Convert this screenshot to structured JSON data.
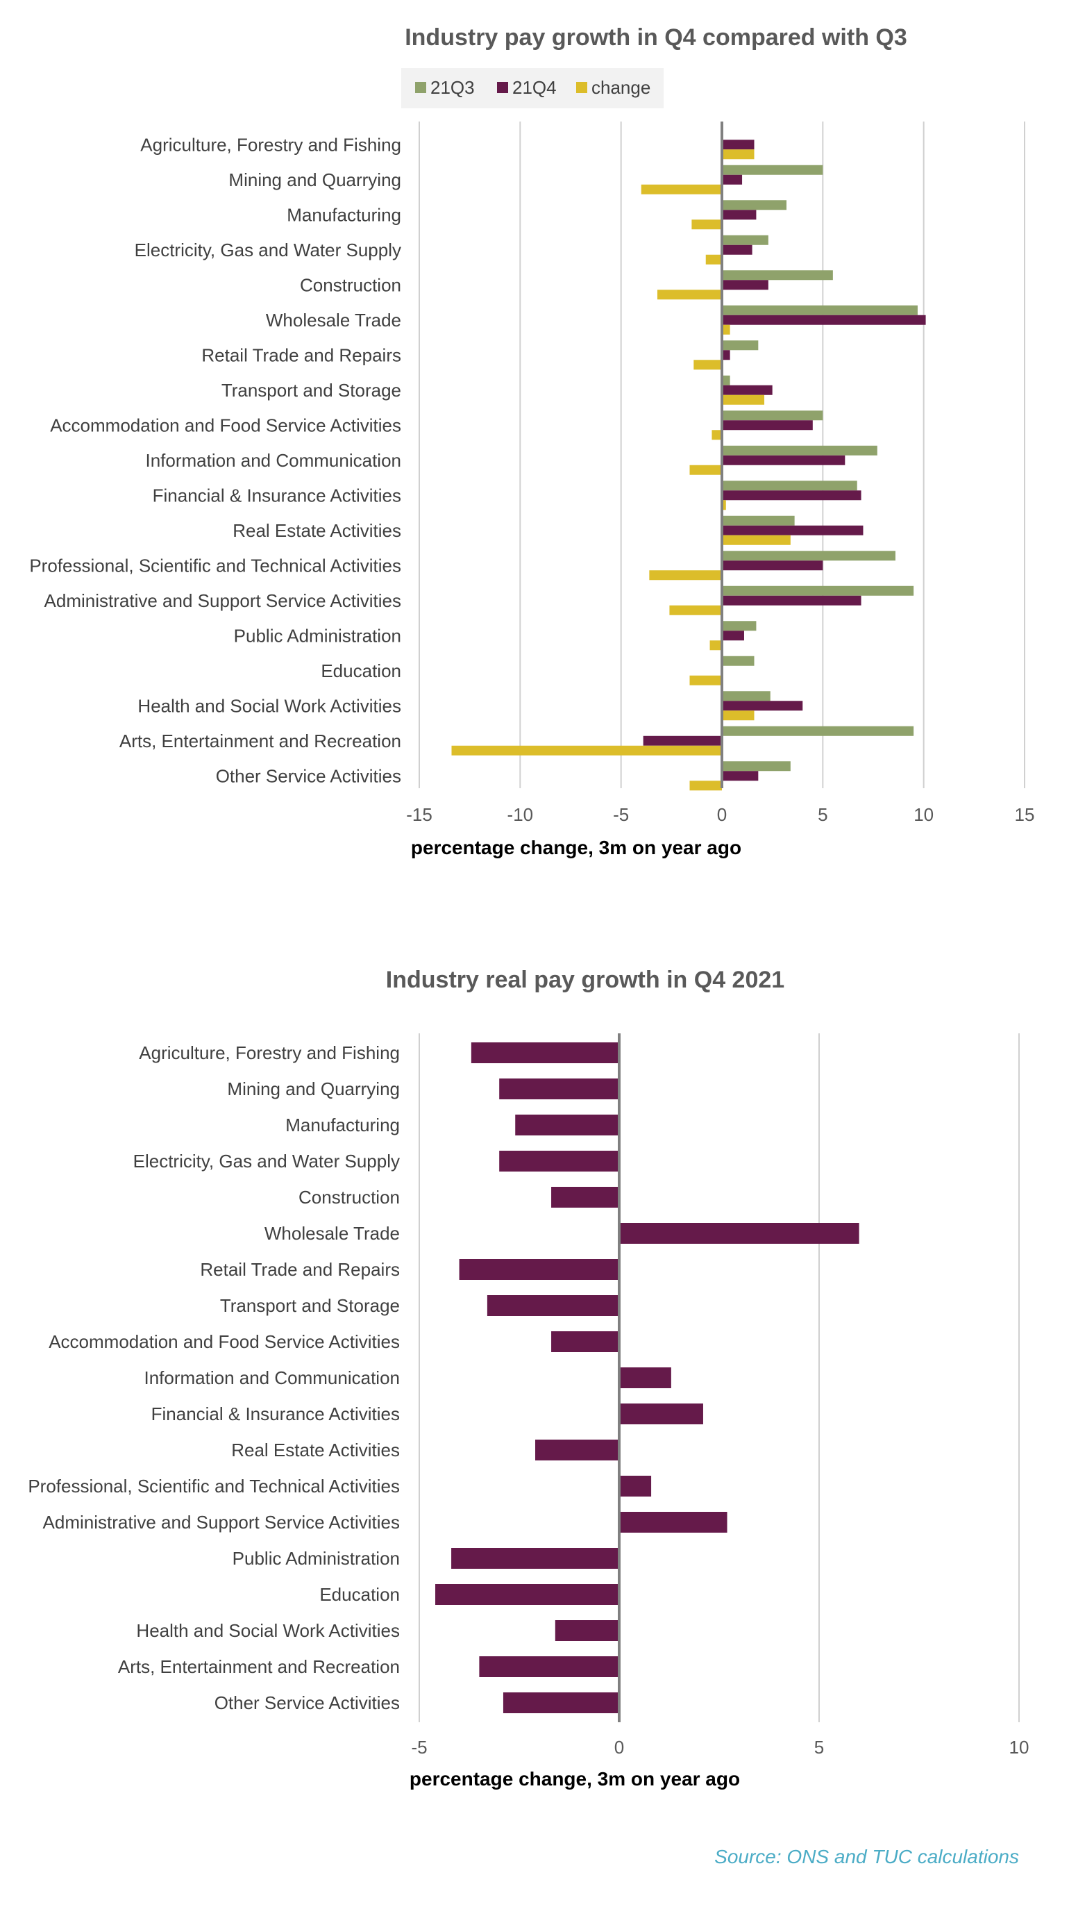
{
  "colors": {
    "21Q3": "#8fa26b",
    "21Q4": "#651a4a",
    "change": "#dcbd2a",
    "grid": "#d0d0d0",
    "zero_axis": "#808080",
    "source": "#4bacc6"
  },
  "chart_data": [
    {
      "type": "bar",
      "orientation": "horizontal",
      "title": "Industry pay growth in Q4 compared with Q3",
      "xlabel": "percentage change, 3m on year ago",
      "xlim": [
        -15,
        15
      ],
      "xticks": [
        "-15",
        "-10",
        "-5",
        "0",
        "5",
        "10",
        "15"
      ],
      "legend": "top",
      "grid": true,
      "categories": [
        "Agriculture, Forestry and Fishing",
        "Mining and Quarrying",
        "Manufacturing",
        "Electricity, Gas and Water Supply",
        "Construction",
        "Wholesale Trade",
        "Retail Trade and Repairs",
        "Transport and Storage",
        "Accommodation and Food Service Activities",
        "Information and Communication",
        "Financial & Insurance Activities",
        "Real Estate Activities",
        "Professional, Scientific and Technical Activities",
        "Administrative and Support Service Activities",
        "Public Administration",
        "Education",
        "Health and Social Work Activities",
        "Arts, Entertainment and Recreation",
        "Other Service Activities"
      ],
      "series": [
        {
          "name": "21Q3",
          "values": [
            0.0,
            5.0,
            3.2,
            2.3,
            5.5,
            9.7,
            1.8,
            0.4,
            5.0,
            7.7,
            6.7,
            3.6,
            8.6,
            9.5,
            1.7,
            1.6,
            2.4,
            9.5,
            3.4
          ]
        },
        {
          "name": "21Q4",
          "values": [
            1.6,
            1.0,
            1.7,
            1.5,
            2.3,
            10.1,
            0.4,
            2.5,
            4.5,
            6.1,
            6.9,
            7.0,
            5.0,
            6.9,
            1.1,
            0.0,
            4.0,
            -3.9,
            1.8
          ]
        },
        {
          "name": "change",
          "values": [
            1.6,
            -4.0,
            -1.5,
            -0.8,
            -3.2,
            0.4,
            -1.4,
            2.1,
            -0.5,
            -1.6,
            0.2,
            3.4,
            -3.6,
            -2.6,
            -0.6,
            -1.6,
            1.6,
            -13.4,
            -1.6
          ]
        }
      ]
    },
    {
      "type": "bar",
      "orientation": "horizontal",
      "title": "Industry real pay growth in Q4 2021",
      "xlabel": "percentage change, 3m on year ago",
      "xlim": [
        -5,
        10
      ],
      "xticks": [
        "-5",
        "0",
        "5",
        "10"
      ],
      "legend": "none",
      "grid": true,
      "categories": [
        "Agriculture, Forestry and Fishing",
        "Mining and Quarrying",
        "Manufacturing",
        "Electricity, Gas and Water Supply",
        "Construction",
        "Wholesale Trade",
        "Retail Trade and Repairs",
        "Transport and Storage",
        "Accommodation and Food Service Activities",
        "Information and Communication",
        "Financial & Insurance Activities",
        "Real Estate Activities",
        "Professional, Scientific and Technical Activities",
        "Administrative and Support Service Activities",
        "Public Administration",
        "Education",
        "Health and Social Work Activities",
        "Arts, Entertainment and Recreation",
        "Other Service Activities"
      ],
      "series": [
        {
          "name": "",
          "values": [
            -3.7,
            -3.0,
            -2.6,
            -3.0,
            -1.7,
            6.0,
            -4.0,
            -3.3,
            -1.7,
            1.3,
            2.1,
            -2.1,
            0.8,
            2.7,
            -4.2,
            -4.6,
            -1.6,
            -3.5,
            -2.9
          ]
        }
      ]
    }
  ],
  "source": "Source: ONS and TUC calculations"
}
